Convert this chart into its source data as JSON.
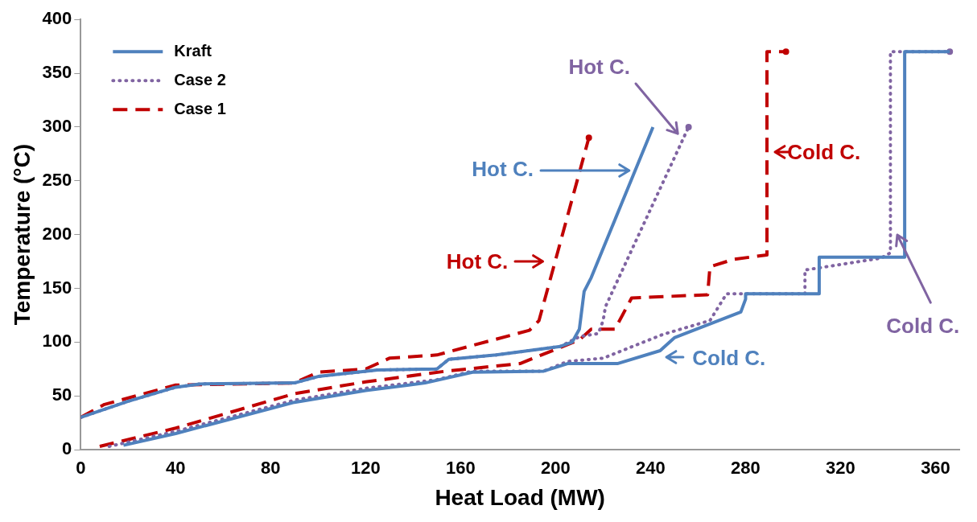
{
  "chart_data": {
    "type": "line",
    "xlabel": "Heat Load (MW)",
    "ylabel": "Temperature (°C)",
    "xlim": [
      0,
      370
    ],
    "ylim": [
      0,
      400
    ],
    "xticks": [
      0,
      40,
      80,
      120,
      160,
      200,
      240,
      280,
      320,
      360
    ],
    "yticks": [
      0,
      50,
      100,
      150,
      200,
      250,
      300,
      350,
      400
    ],
    "grid": false,
    "legend": "top left",
    "marker": "none",
    "series": [
      {
        "name": "Kraft",
        "color": "#4f81bd",
        "line_style": "solid",
        "x": [
          0,
          20,
          40,
          50,
          90,
          100,
          125,
          150,
          155,
          175,
          202,
          207,
          210,
          212,
          215,
          241
        ],
        "values": [
          30,
          45,
          58,
          61,
          62,
          68,
          74,
          75,
          84,
          88,
          96,
          100,
          112,
          147,
          160,
          300
        ]
      },
      {
        "name": "Case 2",
        "color": "#8064a2",
        "line_style": "dotted",
        "x": [
          0,
          20,
          40,
          50,
          90,
          100,
          125,
          150,
          155,
          175,
          202,
          210,
          218,
          220,
          221,
          256
        ],
        "values": [
          30,
          45,
          58,
          61,
          62,
          68,
          74,
          75,
          84,
          88,
          96,
          105,
          108,
          120,
          133,
          300
        ]
      },
      {
        "name": "Case 1",
        "color": "#c00000",
        "line_style": "dashed",
        "x": [
          0,
          10,
          40,
          90,
          100,
          120,
          130,
          150,
          189,
          193,
          214
        ],
        "values": [
          30,
          42,
          60,
          62,
          72,
          75,
          85,
          88,
          111,
          120,
          290
        ]
      },
      {
        "color": "#4f81bd",
        "line_style": "solid",
        "x": [
          18,
          40,
          90,
          120,
          145,
          165,
          195,
          205,
          226,
          244,
          250,
          278,
          280,
          280,
          311,
          311,
          347,
          347,
          366
        ],
        "values": [
          4,
          15,
          44,
          55,
          62,
          72,
          73,
          80,
          80,
          92,
          104,
          128,
          140,
          145,
          145,
          179,
          179,
          370,
          370
        ]
      },
      {
        "color": "#8064a2",
        "line_style": "dotted",
        "x": [
          12,
          40,
          90,
          120,
          150,
          165,
          195,
          205,
          220,
          245,
          265,
          272,
          305,
          305,
          337,
          341,
          341,
          366
        ],
        "values": [
          3,
          17,
          46,
          57,
          65,
          73,
          73,
          82,
          85,
          107,
          120,
          145,
          145,
          167,
          178,
          183,
          370,
          370
        ]
      },
      {
        "color": "#c00000",
        "line_style": "dashed",
        "x": [
          8,
          40,
          90,
          120,
          154,
          185,
          194,
          210,
          215,
          225,
          232,
          264,
          265,
          275,
          289,
          289,
          297
        ],
        "values": [
          3,
          20,
          52,
          63,
          73,
          80,
          88,
          102,
          112,
          112,
          141,
          144,
          170,
          177,
          181,
          370,
          370
        ]
      }
    ],
    "annotations": [
      "Hot C.",
      "Hot C.",
      "Hot C.",
      "Cold C.",
      "Cold C.",
      "Cold C."
    ]
  }
}
